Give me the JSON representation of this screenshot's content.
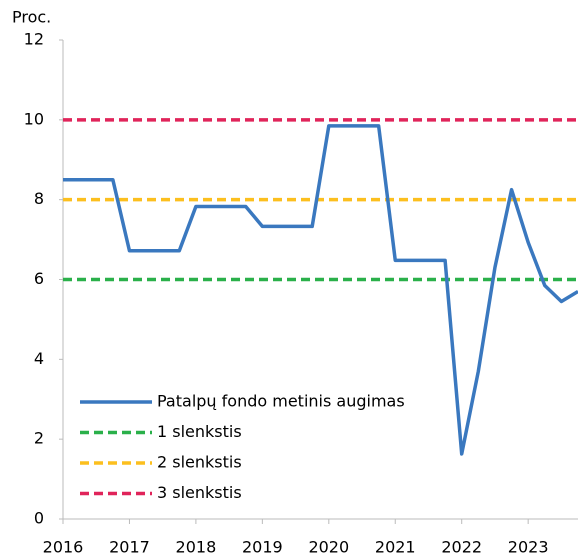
{
  "chart_data": {
    "type": "line",
    "y_label": "Proc.",
    "xlim": [
      2016,
      2023.75
    ],
    "xticks": [
      2016,
      2017,
      2018,
      2019,
      2020,
      2021,
      2022,
      2023
    ],
    "ylim": [
      0,
      12
    ],
    "yticks": [
      0,
      2,
      4,
      6,
      8,
      10,
      12
    ],
    "legend": "bottom-left",
    "series": [
      {
        "name": "Patalpų fondo metinis augimas",
        "color": "#3a78bf",
        "dash": false,
        "x": [
          2016,
          2016.25,
          2016.5,
          2016.75,
          2017,
          2017.25,
          2017.5,
          2017.75,
          2018,
          2018.25,
          2018.5,
          2018.75,
          2019,
          2019.25,
          2019.5,
          2019.75,
          2020,
          2020.25,
          2020.5,
          2020.75,
          2021,
          2021.25,
          2021.5,
          2021.75,
          2022,
          2022.25,
          2022.5,
          2022.75,
          2023,
          2023.25,
          2023.5,
          2023.75
        ],
        "values": [
          8.5,
          8.5,
          8.5,
          8.5,
          6.72,
          6.72,
          6.72,
          6.72,
          7.83,
          7.83,
          7.83,
          7.83,
          7.33,
          7.33,
          7.33,
          7.33,
          9.85,
          9.85,
          9.85,
          9.85,
          6.48,
          6.48,
          6.48,
          6.48,
          1.63,
          3.7,
          6.3,
          8.25,
          6.93,
          5.85,
          5.45,
          5.7
        ]
      },
      {
        "name": "1 slenkstis",
        "color": "#2ab04a",
        "dash": true,
        "x": [
          2016,
          2023.75
        ],
        "values": [
          6,
          6
        ]
      },
      {
        "name": "2 slenkstis",
        "color": "#fcbf1e",
        "dash": true,
        "x": [
          2016,
          2023.75
        ],
        "values": [
          8,
          8
        ]
      },
      {
        "name": "3 slenkstis",
        "color": "#e0245a",
        "dash": true,
        "x": [
          2016,
          2023.75
        ],
        "values": [
          10,
          10
        ]
      }
    ]
  }
}
